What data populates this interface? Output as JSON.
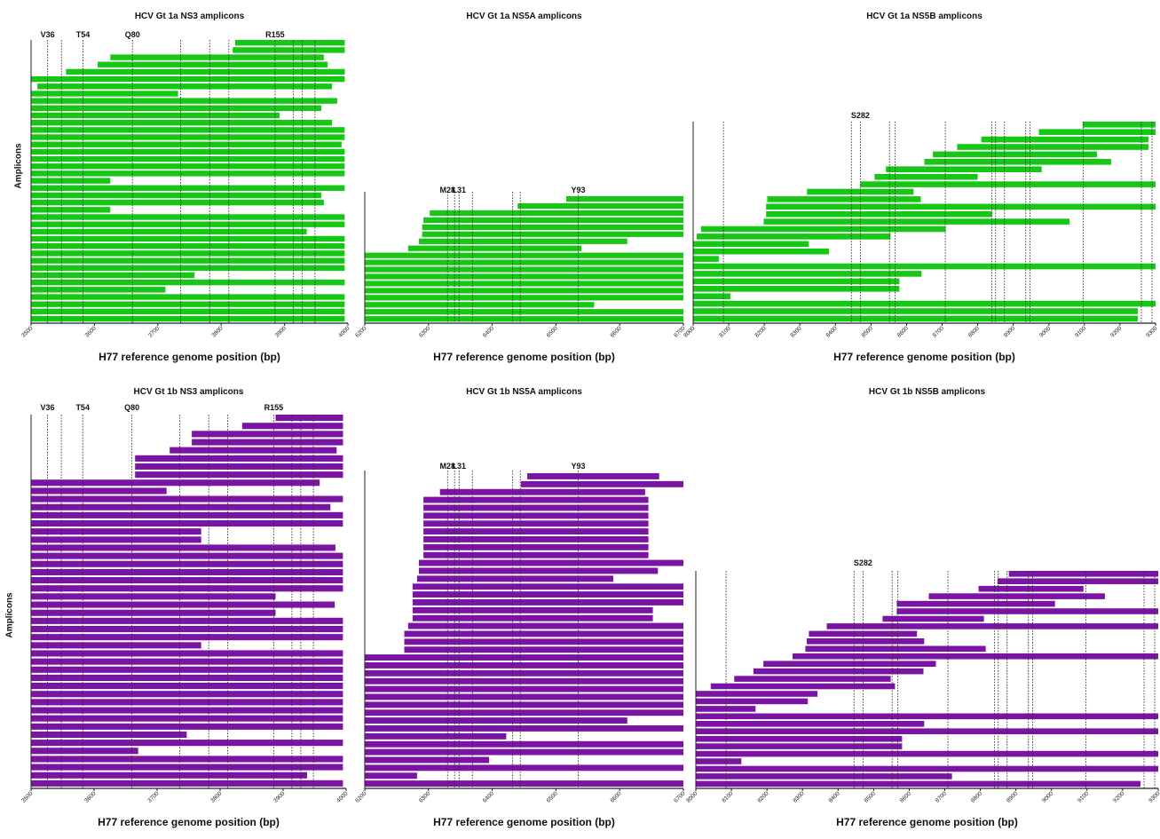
{
  "figure": {
    "y_axis_label": "Amplicons",
    "x_axis_label": "H77 reference genome position (bp)"
  },
  "colors": {
    "gt1a": "#16c716",
    "gt1b": "#7b14a3",
    "axis": "#222222",
    "mutation_line": "#333333"
  },
  "chart_data": [
    {
      "type": "bar",
      "orientation": "horizontal-range",
      "title": "HCV Gt 1a NS3 amplicons",
      "xlabel": "H77 reference genome position (bp)",
      "ylabel": "Amplicons",
      "xlim": [
        3500,
        4000
      ],
      "xticks": [
        3500,
        3600,
        3700,
        3800,
        3900,
        4000
      ],
      "mutations": [
        {
          "label": "V36",
          "pos": 3526
        },
        {
          "label": "",
          "pos": 3548
        },
        {
          "label": "T54",
          "pos": 3582
        },
        {
          "label": "Q80",
          "pos": 3660
        },
        {
          "label": "",
          "pos": 3736
        },
        {
          "label": "",
          "pos": 3782
        },
        {
          "label": "",
          "pos": 3812
        },
        {
          "label": "R155",
          "pos": 3885
        },
        {
          "label": "",
          "pos": 3914
        },
        {
          "label": "",
          "pos": 3928
        },
        {
          "label": "",
          "pos": 3948
        }
      ],
      "amplicons": [
        [
          3822,
          3995
        ],
        [
          3818,
          3995
        ],
        [
          3625,
          3962
        ],
        [
          3605,
          3968
        ],
        [
          3555,
          3995
        ],
        [
          3500,
          3995
        ],
        [
          3510,
          3975
        ],
        [
          3500,
          3732
        ],
        [
          3500,
          3983
        ],
        [
          3500,
          3958
        ],
        [
          3500,
          3892
        ],
        [
          3500,
          3975
        ],
        [
          3500,
          3995
        ],
        [
          3500,
          3995
        ],
        [
          3500,
          3990
        ],
        [
          3500,
          3995
        ],
        [
          3500,
          3995
        ],
        [
          3500,
          3995
        ],
        [
          3500,
          3995
        ],
        [
          3500,
          3625
        ],
        [
          3500,
          3995
        ],
        [
          3500,
          3958
        ],
        [
          3500,
          3962
        ],
        [
          3500,
          3625
        ],
        [
          3500,
          3995
        ],
        [
          3500,
          3995
        ],
        [
          3500,
          3935
        ],
        [
          3500,
          3995
        ],
        [
          3500,
          3995
        ],
        [
          3500,
          3995
        ],
        [
          3500,
          3995
        ],
        [
          3500,
          3995
        ],
        [
          3500,
          3758
        ],
        [
          3500,
          3995
        ],
        [
          3500,
          3712
        ],
        [
          3500,
          3995
        ],
        [
          3500,
          3995
        ],
        [
          3500,
          3995
        ],
        [
          3500,
          3995
        ]
      ]
    },
    {
      "type": "bar",
      "orientation": "horizontal-range",
      "title": "HCV Gt 1a NS5A amplicons",
      "xlabel": "H77 reference genome position (bp)",
      "ylabel": "",
      "xlim": [
        6200,
        6700
      ],
      "xticks": [
        6200,
        6300,
        6400,
        6500,
        6600,
        6700
      ],
      "mutations": [
        {
          "label": "M28",
          "pos": 6330
        },
        {
          "label": "",
          "pos": 6341
        },
        {
          "label": "L31",
          "pos": 6348
        },
        {
          "label": "",
          "pos": 6369
        },
        {
          "label": "",
          "pos": 6432
        },
        {
          "label": "",
          "pos": 6444
        },
        {
          "label": "Y93",
          "pos": 6535
        }
      ],
      "amplicons": [
        [
          6516,
          6700
        ],
        [
          6440,
          6700
        ],
        [
          6302,
          6700
        ],
        [
          6292,
          6700
        ],
        [
          6290,
          6700
        ],
        [
          6290,
          6700
        ],
        [
          6285,
          6612
        ],
        [
          6268,
          6540
        ],
        [
          6200,
          6700
        ],
        [
          6200,
          6700
        ],
        [
          6200,
          6700
        ],
        [
          6200,
          6700
        ],
        [
          6200,
          6700
        ],
        [
          6200,
          6700
        ],
        [
          6200,
          6700
        ],
        [
          6200,
          6560
        ],
        [
          6200,
          6700
        ],
        [
          6200,
          6700
        ]
      ]
    },
    {
      "type": "bar",
      "orientation": "horizontal-range",
      "title": "HCV Gt 1a NS5B amplicons",
      "xlabel": "H77 reference genome position (bp)",
      "ylabel": "",
      "xlim": [
        8000,
        9300
      ],
      "xticks": [
        8000,
        8100,
        8200,
        8300,
        8400,
        8500,
        8600,
        8700,
        8800,
        8900,
        9000,
        9100,
        9200,
        9300
      ],
      "mutations": [
        {
          "label": "",
          "pos": 8085
        },
        {
          "label": "",
          "pos": 8445
        },
        {
          "label": "S282",
          "pos": 8470
        },
        {
          "label": "",
          "pos": 8552
        },
        {
          "label": "",
          "pos": 8568
        },
        {
          "label": "",
          "pos": 8709
        },
        {
          "label": "",
          "pos": 8840
        },
        {
          "label": "",
          "pos": 8850
        },
        {
          "label": "",
          "pos": 8875
        },
        {
          "label": "",
          "pos": 8935
        },
        {
          "label": "",
          "pos": 8947
        },
        {
          "label": "",
          "pos": 9097
        },
        {
          "label": "",
          "pos": 9260
        },
        {
          "label": "",
          "pos": 9290
        }
      ],
      "amplicons": [
        [
          9095,
          9300
        ],
        [
          8972,
          9300
        ],
        [
          8810,
          9280
        ],
        [
          8742,
          9280
        ],
        [
          8674,
          9135
        ],
        [
          8650,
          9175
        ],
        [
          8542,
          8980
        ],
        [
          8510,
          8800
        ],
        [
          8470,
          9300
        ],
        [
          8320,
          8620
        ],
        [
          8208,
          8640
        ],
        [
          8205,
          9300
        ],
        [
          8205,
          8840
        ],
        [
          8198,
          9058
        ],
        [
          8022,
          8710
        ],
        [
          8010,
          8555
        ],
        [
          8000,
          8325
        ],
        [
          8000,
          8382
        ],
        [
          8000,
          8072
        ],
        [
          8000,
          9300
        ],
        [
          8000,
          8642
        ],
        [
          8000,
          8580
        ],
        [
          8000,
          8580
        ],
        [
          8000,
          8105
        ],
        [
          8000,
          9300
        ],
        [
          8000,
          9250
        ],
        [
          8000,
          9250
        ]
      ]
    },
    {
      "type": "bar",
      "orientation": "horizontal-range",
      "title": "HCV Gt 1b NS3 amplicons",
      "xlabel": "H77 reference genome position (bp)",
      "ylabel": "Amplicons",
      "xlim": [
        3500,
        4000
      ],
      "xticks": [
        3500,
        3600,
        3700,
        3800,
        3900,
        4000
      ],
      "mutations": [
        {
          "label": "V36",
          "pos": 3526
        },
        {
          "label": "",
          "pos": 3548
        },
        {
          "label": "T54",
          "pos": 3582
        },
        {
          "label": "Q80",
          "pos": 3660
        },
        {
          "label": "",
          "pos": 3736
        },
        {
          "label": "",
          "pos": 3782
        },
        {
          "label": "",
          "pos": 3812
        },
        {
          "label": "R155",
          "pos": 3885
        },
        {
          "label": "",
          "pos": 3914
        },
        {
          "label": "",
          "pos": 3928
        },
        {
          "label": "",
          "pos": 3948
        }
      ],
      "amplicons": [
        [
          3888,
          3995
        ],
        [
          3835,
          3995
        ],
        [
          3755,
          3995
        ],
        [
          3755,
          3995
        ],
        [
          3720,
          3985
        ],
        [
          3665,
          3995
        ],
        [
          3665,
          3995
        ],
        [
          3665,
          3995
        ],
        [
          3500,
          3958
        ],
        [
          3500,
          3715
        ],
        [
          3500,
          3995
        ],
        [
          3500,
          3975
        ],
        [
          3500,
          3995
        ],
        [
          3500,
          3995
        ],
        [
          3500,
          3770
        ],
        [
          3500,
          3770
        ],
        [
          3500,
          3983
        ],
        [
          3500,
          3995
        ],
        [
          3500,
          3995
        ],
        [
          3500,
          3995
        ],
        [
          3500,
          3995
        ],
        [
          3500,
          3995
        ],
        [
          3500,
          3888
        ],
        [
          3500,
          3982
        ],
        [
          3500,
          3888
        ],
        [
          3500,
          3995
        ],
        [
          3500,
          3995
        ],
        [
          3500,
          3995
        ],
        [
          3500,
          3770
        ],
        [
          3500,
          3995
        ],
        [
          3500,
          3995
        ],
        [
          3500,
          3995
        ],
        [
          3500,
          3995
        ],
        [
          3500,
          3995
        ],
        [
          3500,
          3995
        ],
        [
          3500,
          3995
        ],
        [
          3500,
          3995
        ],
        [
          3500,
          3995
        ],
        [
          3500,
          3995
        ],
        [
          3500,
          3747
        ],
        [
          3500,
          3995
        ],
        [
          3500,
          3670
        ],
        [
          3500,
          3995
        ],
        [
          3500,
          3995
        ],
        [
          3500,
          3938
        ],
        [
          3500,
          3995
        ]
      ]
    },
    {
      "type": "bar",
      "orientation": "horizontal-range",
      "title": "HCV Gt 1b NS5A amplicons",
      "xlabel": "H77 reference genome position (bp)",
      "ylabel": "",
      "xlim": [
        6200,
        6700
      ],
      "xticks": [
        6200,
        6300,
        6400,
        6500,
        6600,
        6700
      ],
      "mutations": [
        {
          "label": "M28",
          "pos": 6330
        },
        {
          "label": "",
          "pos": 6341
        },
        {
          "label": "L31",
          "pos": 6348
        },
        {
          "label": "",
          "pos": 6369
        },
        {
          "label": "",
          "pos": 6432
        },
        {
          "label": "",
          "pos": 6444
        },
        {
          "label": "Y93",
          "pos": 6535
        }
      ],
      "amplicons": [
        [
          6455,
          6662
        ],
        [
          6445,
          6700
        ],
        [
          6318,
          6640
        ],
        [
          6292,
          6645
        ],
        [
          6292,
          6645
        ],
        [
          6292,
          6645
        ],
        [
          6292,
          6645
        ],
        [
          6292,
          6645
        ],
        [
          6292,
          6645
        ],
        [
          6292,
          6645
        ],
        [
          6292,
          6645
        ],
        [
          6285,
          6700
        ],
        [
          6285,
          6660
        ],
        [
          6282,
          6590
        ],
        [
          6275,
          6700
        ],
        [
          6275,
          6700
        ],
        [
          6275,
          6700
        ],
        [
          6275,
          6652
        ],
        [
          6275,
          6652
        ],
        [
          6268,
          6700
        ],
        [
          6262,
          6700
        ],
        [
          6262,
          6700
        ],
        [
          6262,
          6700
        ],
        [
          6200,
          6700
        ],
        [
          6200,
          6700
        ],
        [
          6200,
          6700
        ],
        [
          6200,
          6700
        ],
        [
          6200,
          6700
        ],
        [
          6200,
          6700
        ],
        [
          6200,
          6700
        ],
        [
          6200,
          6700
        ],
        [
          6200,
          6612
        ],
        [
          6200,
          6700
        ],
        [
          6200,
          6422
        ],
        [
          6200,
          6700
        ],
        [
          6200,
          6700
        ],
        [
          6200,
          6395
        ],
        [
          6200,
          6700
        ],
        [
          6200,
          6282
        ],
        [
          6200,
          6700
        ]
      ]
    },
    {
      "type": "bar",
      "orientation": "horizontal-range",
      "title": "HCV Gt 1b NS5B amplicons",
      "xlabel": "H77 reference genome position (bp)",
      "ylabel": "",
      "xlim": [
        8000,
        9300
      ],
      "xticks": [
        8000,
        8100,
        8200,
        8300,
        8400,
        8500,
        8600,
        8700,
        8800,
        8900,
        9000,
        9100,
        9200,
        9300
      ],
      "mutations": [
        {
          "label": "",
          "pos": 8085
        },
        {
          "label": "",
          "pos": 8445
        },
        {
          "label": "S282",
          "pos": 8470
        },
        {
          "label": "",
          "pos": 8552
        },
        {
          "label": "",
          "pos": 8568
        },
        {
          "label": "",
          "pos": 8709
        },
        {
          "label": "",
          "pos": 8840
        },
        {
          "label": "",
          "pos": 8850
        },
        {
          "label": "",
          "pos": 8875
        },
        {
          "label": "",
          "pos": 8935
        },
        {
          "label": "",
          "pos": 8947
        },
        {
          "label": "",
          "pos": 9097
        },
        {
          "label": "",
          "pos": 9260
        },
        {
          "label": "",
          "pos": 9290
        }
      ],
      "amplicons": [
        [
          8880,
          9300
        ],
        [
          8848,
          9300
        ],
        [
          8795,
          9090
        ],
        [
          8655,
          9150
        ],
        [
          8565,
          9010
        ],
        [
          8565,
          9300
        ],
        [
          8525,
          8810
        ],
        [
          8368,
          9300
        ],
        [
          8318,
          8622
        ],
        [
          8312,
          8642
        ],
        [
          8308,
          8815
        ],
        [
          8272,
          9300
        ],
        [
          8190,
          8675
        ],
        [
          8162,
          8640
        ],
        [
          8108,
          8548
        ],
        [
          8042,
          8560
        ],
        [
          8000,
          8342
        ],
        [
          8000,
          8315
        ],
        [
          8000,
          8168
        ],
        [
          8000,
          9300
        ],
        [
          8000,
          8642
        ],
        [
          8000,
          9300
        ],
        [
          8000,
          8580
        ],
        [
          8000,
          8580
        ],
        [
          8000,
          9300
        ],
        [
          8000,
          8128
        ],
        [
          8000,
          9300
        ],
        [
          8000,
          8720
        ],
        [
          8000,
          9250
        ]
      ]
    }
  ]
}
